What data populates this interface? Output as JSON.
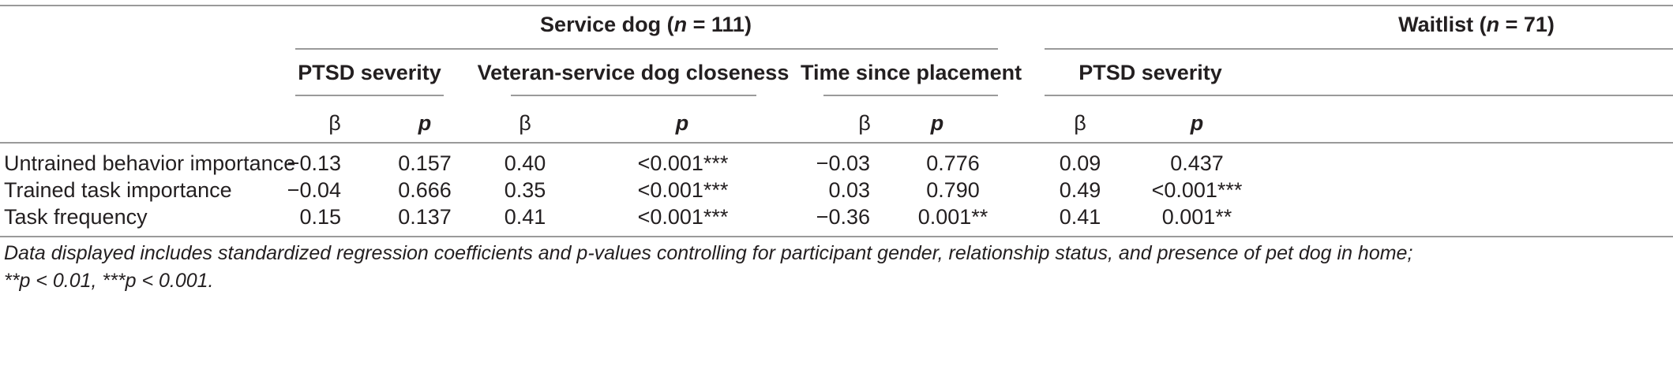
{
  "groups": [
    {
      "label_main": "Service dog (",
      "label_n": "n",
      "label_rest": " = 111)"
    },
    {
      "label_main": "Waitlist (",
      "label_n": "n",
      "label_rest": " = 71)"
    }
  ],
  "subheaders": [
    "PTSD severity",
    "Veteran-service dog closeness",
    "Time since placement",
    "PTSD severity"
  ],
  "columns": {
    "beta": "β",
    "p": "p"
  },
  "rows": [
    {
      "label": "Untrained behavior importance",
      "cells": [
        "−0.13",
        "0.157",
        "0.40",
        "<0.001***",
        "−0.03",
        "0.776",
        "0.09",
        "0.437"
      ]
    },
    {
      "label": "Trained task importance",
      "cells": [
        "−0.04",
        "0.666",
        "0.35",
        "<0.001***",
        "0.03",
        "0.790",
        "0.49",
        "<0.001***"
      ]
    },
    {
      "label": "Task frequency",
      "cells": [
        "0.15",
        "0.137",
        "0.41",
        "<0.001***",
        "−0.36",
        "0.001**",
        "0.41",
        "0.001**"
      ]
    }
  ],
  "caption": {
    "line1": "Data displayed includes standardized regression coefficients and p-values controlling for participant gender, relationship status, and presence of pet dog in home;",
    "line2": "**p < 0.01, ***p < 0.001."
  }
}
